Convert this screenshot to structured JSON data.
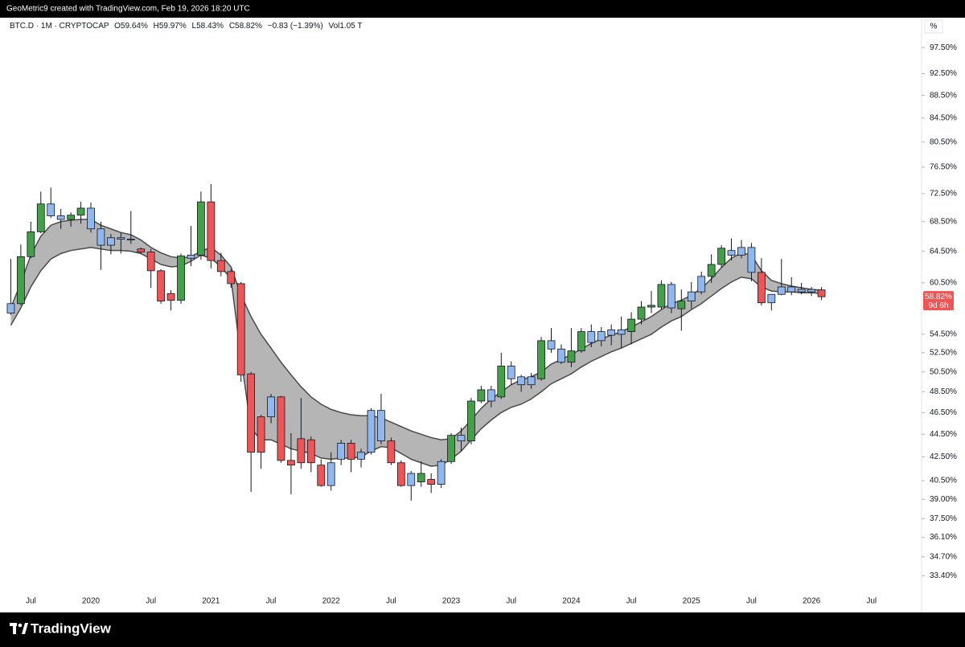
{
  "header": {
    "credit": "GeoMetric9 created with TradingView.com, Feb 19, 2026 18:20 UTC"
  },
  "footer": {
    "brand": "TradingView"
  },
  "chart_data": {
    "type": "candlestick",
    "status_line": {
      "symbol": "BTC.D · 1M · CRYPTOCAP",
      "open": "O59.64%",
      "high": "H59.97%",
      "low": "L58.43%",
      "close": "C58.82%",
      "change": "−0.83 (−1.39%)",
      "volume": "Vol1.05 T"
    },
    "axis_unit": "%",
    "last_price_label": "58.82%",
    "countdown": "9d 6h",
    "log_scale": true,
    "ylim": [
      31.0,
      103.6
    ],
    "yticks": [
      {
        "value": 97.5,
        "label": "97.50%"
      },
      {
        "value": 92.5,
        "label": "92.50%"
      },
      {
        "value": 88.5,
        "label": "88.50%"
      },
      {
        "value": 84.5,
        "label": "84.50%"
      },
      {
        "value": 80.5,
        "label": "80.50%"
      },
      {
        "value": 76.5,
        "label": "76.50%"
      },
      {
        "value": 72.5,
        "label": "72.50%"
      },
      {
        "value": 68.5,
        "label": "68.50%"
      },
      {
        "value": 64.5,
        "label": "64.50%"
      },
      {
        "value": 60.5,
        "label": "60.50%"
      },
      {
        "value": 54.5,
        "label": "54.50%"
      },
      {
        "value": 52.5,
        "label": "52.50%"
      },
      {
        "value": 50.5,
        "label": "50.50%"
      },
      {
        "value": 48.5,
        "label": "48.50%"
      },
      {
        "value": 46.5,
        "label": "46.50%"
      },
      {
        "value": 44.5,
        "label": "44.50%"
      },
      {
        "value": 42.5,
        "label": "42.50%"
      },
      {
        "value": 40.5,
        "label": "40.50%"
      },
      {
        "value": 39,
        "label": "39.00%"
      },
      {
        "value": 37.5,
        "label": "37.50%"
      },
      {
        "value": 36.1,
        "label": "36.10%"
      },
      {
        "value": 34.7,
        "label": "34.70%"
      },
      {
        "value": 33.4,
        "label": "33.40%"
      }
    ],
    "xlim": [
      "2019-04",
      "2026-12"
    ],
    "xticks": [
      {
        "value": "2019-07",
        "label": "Jul"
      },
      {
        "value": "2020-01",
        "label": "2020"
      },
      {
        "value": "2020-07",
        "label": "Jul"
      },
      {
        "value": "2021-01",
        "label": "2021"
      },
      {
        "value": "2021-07",
        "label": "Jul"
      },
      {
        "value": "2022-01",
        "label": "2022"
      },
      {
        "value": "2022-07",
        "label": "Jul"
      },
      {
        "value": "2023-01",
        "label": "2023"
      },
      {
        "value": "2023-07",
        "label": "Jul"
      },
      {
        "value": "2024-01",
        "label": "2024"
      },
      {
        "value": "2024-07",
        "label": "Jul"
      },
      {
        "value": "2025-01",
        "label": "2025"
      },
      {
        "value": "2025-07",
        "label": "Jul"
      },
      {
        "value": "2026-01",
        "label": "2026"
      },
      {
        "value": "2026-07",
        "label": "Jul"
      }
    ],
    "x": [
      "2019-05",
      "2019-06",
      "2019-07",
      "2019-08",
      "2019-09",
      "2019-10",
      "2019-11",
      "2019-12",
      "2020-01",
      "2020-02",
      "2020-03",
      "2020-04",
      "2020-05",
      "2020-06",
      "2020-07",
      "2020-08",
      "2020-09",
      "2020-10",
      "2020-11",
      "2020-12",
      "2021-01",
      "2021-02",
      "2021-03",
      "2021-04",
      "2021-05",
      "2021-06",
      "2021-07",
      "2021-08",
      "2021-09",
      "2021-10",
      "2021-11",
      "2021-12",
      "2022-01",
      "2022-02",
      "2022-03",
      "2022-04",
      "2022-05",
      "2022-06",
      "2022-07",
      "2022-08",
      "2022-09",
      "2022-10",
      "2022-11",
      "2022-12",
      "2023-01",
      "2023-02",
      "2023-03",
      "2023-04",
      "2023-05",
      "2023-06",
      "2023-07",
      "2023-08",
      "2023-09",
      "2023-10",
      "2023-11",
      "2023-12",
      "2024-01",
      "2024-02",
      "2024-03",
      "2024-04",
      "2024-05",
      "2024-06",
      "2024-07",
      "2024-08",
      "2024-09",
      "2024-10",
      "2024-11",
      "2024-12",
      "2025-01",
      "2025-02",
      "2025-03",
      "2025-04",
      "2025-05",
      "2025-06",
      "2025-07",
      "2025-08",
      "2025-09",
      "2025-10",
      "2025-11",
      "2025-12",
      "2026-01",
      "2026-02"
    ],
    "open": [
      56.9,
      58.0,
      63.8,
      67.1,
      71.0,
      69.3,
      68.8,
      69.4,
      70.4,
      67.5,
      65.3,
      66.3,
      66.1,
      64.8,
      64.4,
      62.0,
      59.2,
      58.4,
      63.6,
      64.0,
      71.3,
      63.3,
      61.9,
      60.4,
      50.3,
      46.1,
      46.1,
      48.0,
      42.2,
      44.1,
      44.0,
      41.8,
      40.1,
      42.3,
      43.7,
      42.3,
      42.9,
      46.7,
      43.9,
      42.0,
      40.1,
      40.4,
      40.6,
      40.2,
      42.1,
      44.4,
      43.9,
      47.6,
      48.7,
      48.0,
      51.1,
      50.0,
      49.2,
      49.8,
      53.8,
      52.9,
      51.5,
      52.7,
      54.8,
      53.8,
      54.4,
      55.0,
      54.8,
      56.2,
      57.6,
      57.6,
      60.3,
      57.4,
      58.3,
      59.4,
      61.3,
      62.8,
      64.6,
      64.0,
      65.0,
      61.8,
      58.1,
      59.1,
      59.4,
      59.7,
      59.4,
      59.64
    ],
    "high": [
      63.5,
      65.4,
      68.5,
      72.8,
      73.4,
      70.3,
      69.8,
      71.3,
      71.2,
      68.5,
      66.8,
      67.0,
      70.0,
      65.0,
      64.8,
      62.2,
      59.6,
      64.2,
      67.9,
      72.8,
      73.9,
      64.3,
      62.2,
      60.6,
      50.5,
      46.3,
      48.3,
      48.1,
      44.6,
      47.9,
      44.3,
      42.3,
      42.9,
      44.0,
      44.0,
      43.2,
      46.9,
      48.3,
      44.2,
      42.2,
      41.3,
      42.1,
      41.1,
      42.3,
      44.6,
      45.1,
      47.9,
      49.1,
      49.1,
      52.5,
      51.6,
      50.2,
      50.4,
      54.2,
      55.2,
      53.4,
      55.2,
      55.2,
      55.6,
      55.3,
      55.6,
      56.5,
      57.0,
      58.3,
      59.5,
      60.8,
      60.6,
      59.7,
      60.6,
      61.9,
      64.1,
      65.3,
      66.2,
      66.0,
      65.6,
      63.6,
      58.6,
      63.5,
      61.2,
      60.5,
      60.0,
      59.97
    ],
    "low": [
      56.7,
      57.8,
      63.6,
      66.9,
      69.0,
      67.5,
      67.8,
      68.2,
      67.0,
      62.1,
      64.1,
      64.2,
      65.5,
      64.2,
      59.9,
      58.0,
      57.2,
      58.0,
      62.6,
      63.4,
      62.3,
      61.3,
      59.9,
      49.5,
      39.6,
      41.5,
      45.5,
      42.0,
      39.4,
      41.5,
      41.2,
      40.0,
      39.7,
      41.8,
      41.2,
      41.6,
      42.7,
      43.6,
      41.8,
      40.0,
      38.9,
      40.0,
      39.5,
      39.9,
      41.9,
      43.0,
      43.6,
      47.4,
      47.0,
      47.8,
      49.2,
      48.5,
      48.8,
      49.6,
      52.5,
      51.3,
      51.0,
      52.5,
      53.1,
      53.2,
      53.3,
      53.0,
      53.4,
      55.6,
      56.9,
      57.3,
      56.9,
      54.9,
      57.4,
      59.1,
      60.5,
      62.4,
      63.3,
      63.6,
      60.7,
      57.8,
      57.2,
      59.0,
      59.0,
      59.1,
      58.9,
      58.43
    ],
    "close": [
      58.0,
      63.8,
      67.1,
      71.0,
      69.3,
      68.8,
      69.4,
      70.4,
      67.5,
      65.3,
      66.3,
      66.1,
      66.0,
      64.4,
      62.0,
      58.3,
      58.4,
      63.9,
      64.0,
      71.3,
      63.3,
      61.9,
      60.4,
      50.2,
      42.9,
      42.9,
      48.0,
      42.2,
      41.8,
      42.0,
      42.0,
      40.1,
      42.0,
      43.7,
      42.3,
      42.9,
      46.7,
      43.9,
      42.0,
      40.1,
      41.1,
      41.1,
      40.2,
      42.1,
      44.4,
      43.9,
      47.6,
      48.7,
      47.6,
      51.1,
      49.8,
      49.2,
      50.0,
      53.8,
      52.9,
      51.5,
      52.7,
      54.8,
      53.6,
      54.8,
      55.0,
      54.5,
      56.2,
      57.6,
      57.8,
      60.3,
      57.5,
      58.3,
      59.4,
      61.3,
      62.8,
      64.9,
      64.0,
      65.0,
      61.8,
      58.1,
      59.1,
      60.0,
      60.0,
      59.4,
      59.7,
      58.82
    ],
    "candle_colors": [
      "#90b8f0",
      "#43a047",
      "#43a047",
      "#43a047",
      "#90b8f0",
      "#90b8f0",
      "#43a047",
      "#43a047",
      "#90b8f0",
      "#90b8f0",
      "#90b8f0",
      "#90b8f0",
      "#90b8f0",
      "#f05454",
      "#f05454",
      "#f05454",
      "#f05454",
      "#43a047",
      "#90b8f0",
      "#43a047",
      "#f05454",
      "#f05454",
      "#f05454",
      "#f05454",
      "#f05454",
      "#f05454",
      "#90b8f0",
      "#f05454",
      "#f05454",
      "#f05454",
      "#f05454",
      "#f05454",
      "#90b8f0",
      "#90b8f0",
      "#f05454",
      "#90b8f0",
      "#90b8f0",
      "#90b8f0",
      "#f05454",
      "#f05454",
      "#90b8f0",
      "#43a047",
      "#f05454",
      "#90b8f0",
      "#43a047",
      "#90b8f0",
      "#43a047",
      "#43a047",
      "#90b8f0",
      "#43a047",
      "#90b8f0",
      "#90b8f0",
      "#90b8f0",
      "#43a047",
      "#90b8f0",
      "#90b8f0",
      "#43a047",
      "#43a047",
      "#90b8f0",
      "#90b8f0",
      "#90b8f0",
      "#90b8f0",
      "#43a047",
      "#43a047",
      "#43a047",
      "#43a047",
      "#90b8f0",
      "#43a047",
      "#90b8f0",
      "#90b8f0",
      "#43a047",
      "#43a047",
      "#90b8f0",
      "#90b8f0",
      "#90b8f0",
      "#f05454",
      "#90b8f0",
      "#90b8f0",
      "#90b8f0",
      "#90b8f0",
      "#90b8f0",
      "#f05454"
    ],
    "wick_color": "#131722",
    "band_fill": "#b5b5b5",
    "upper_band": {
      "color": "#4a4a4a",
      "values": [
        57.5,
        60.5,
        64.0,
        66.5,
        68.0,
        68.5,
        68.7,
        68.8,
        68.8,
        68.0,
        67.5,
        67.0,
        66.7,
        66.0,
        65.0,
        64.3,
        63.8,
        63.6,
        63.8,
        64.5,
        65.0,
        64.0,
        62.5,
        59.0,
        56.5,
        54.5,
        53.0,
        51.5,
        50.2,
        49.0,
        48.0,
        47.3,
        46.8,
        46.5,
        46.3,
        46.2,
        46.2,
        46.0,
        45.6,
        45.2,
        44.8,
        44.5,
        44.2,
        44.0,
        44.1,
        44.8,
        45.8,
        46.9,
        47.8,
        48.5,
        49.2,
        49.7,
        50.0,
        50.5,
        51.3,
        51.8,
        52.3,
        52.9,
        53.5,
        54.0,
        54.4,
        54.8,
        55.3,
        55.9,
        56.5,
        57.3,
        58.0,
        58.4,
        59.0,
        59.8,
        61.0,
        62.4,
        63.6,
        64.3,
        64.0,
        62.0,
        60.8,
        60.4,
        60.1,
        59.9,
        59.7,
        59.6
      ]
    },
    "lower_band": {
      "color": "#4a4a4a",
      "values": [
        55.5,
        57.5,
        60.0,
        62.0,
        63.5,
        64.2,
        64.6,
        64.8,
        65.0,
        64.8,
        64.6,
        64.6,
        64.5,
        64.2,
        63.5,
        62.8,
        62.5,
        62.6,
        63.2,
        64.0,
        63.6,
        62.5,
        61.0,
        52.0,
        45.0,
        44.0,
        44.0,
        43.6,
        43.2,
        43.0,
        42.8,
        42.4,
        42.3,
        42.4,
        42.4,
        42.5,
        43.0,
        43.4,
        43.3,
        42.8,
        42.3,
        42.0,
        41.7,
        41.8,
        42.3,
        43.0,
        44.0,
        45.0,
        45.8,
        46.5,
        47.0,
        47.3,
        47.8,
        48.5,
        49.3,
        49.8,
        50.3,
        51.0,
        51.6,
        52.1,
        52.6,
        53.0,
        53.5,
        54.0,
        54.5,
        55.3,
        56.0,
        56.5,
        57.3,
        58.0,
        58.9,
        59.8,
        60.6,
        61.2,
        61.0,
        60.0,
        59.5,
        59.4,
        59.4,
        59.3,
        59.3,
        59.2
      ]
    },
    "price_tag_color": "#f05454"
  }
}
